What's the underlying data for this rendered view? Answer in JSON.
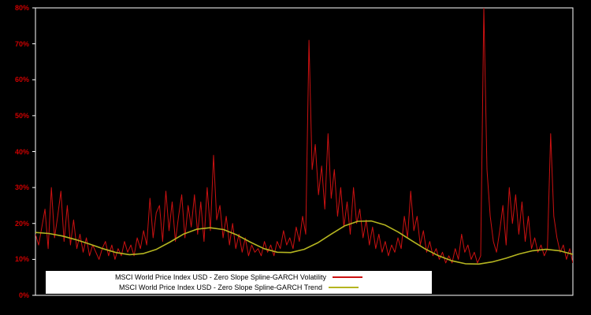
{
  "window": {
    "background": "#000000",
    "plot_border_color": "#ffffff"
  },
  "axis": {
    "tick_color": "#cc0000",
    "ticks": [
      "0%",
      "10%",
      "20%",
      "30%",
      "40%",
      "50%",
      "60%",
      "70%",
      "80%"
    ]
  },
  "legend": {
    "background": "#ffffff",
    "items": [
      {
        "label": "MSCI World Price Index USD - Zero Slope Spline-GARCH Volatility",
        "color": "#cc1111"
      },
      {
        "label": "MSCI World Price Index USD - Zero Slope Spline-GARCH Trend",
        "color": "#b5b520"
      }
    ]
  },
  "chart_data": {
    "type": "line",
    "title": "",
    "xlabel": "",
    "ylabel": "",
    "ylim": [
      0,
      80
    ],
    "y_ticks_percent": [
      0,
      10,
      20,
      30,
      40,
      50,
      60,
      70,
      80
    ],
    "grid": false,
    "legend_position": "bottom-center",
    "series": [
      {
        "name": "MSCI World Price Index USD - Zero Slope Spline-GARCH Volatility",
        "color": "#cc1111",
        "units": "%",
        "values": [
          17,
          14,
          19,
          24,
          13,
          30,
          16,
          22,
          29,
          15,
          25,
          14,
          21,
          13,
          17,
          12,
          16,
          11,
          14,
          12,
          10,
          13,
          15,
          11,
          14,
          10,
          13,
          11,
          15,
          12,
          14,
          11,
          16,
          13,
          18,
          14,
          27,
          16,
          23,
          25,
          15,
          29,
          18,
          26,
          15,
          22,
          28,
          16,
          25,
          19,
          28,
          17,
          26,
          15,
          30,
          18,
          39,
          21,
          25,
          16,
          22,
          14,
          20,
          13,
          17,
          12,
          16,
          11,
          14,
          12,
          13,
          11,
          15,
          12,
          14,
          11,
          15,
          13,
          18,
          14,
          16,
          13,
          19,
          15,
          22,
          17,
          71,
          35,
          42,
          28,
          36,
          24,
          45,
          27,
          35,
          22,
          30,
          19,
          26,
          17,
          30,
          20,
          24,
          16,
          21,
          14,
          19,
          13,
          17,
          12,
          15,
          11,
          14,
          12,
          16,
          13,
          22,
          16,
          29,
          18,
          22,
          14,
          18,
          12,
          15,
          11,
          13,
          10,
          12,
          9,
          11,
          9,
          13,
          10,
          17,
          12,
          14,
          10,
          12,
          9,
          11,
          80,
          35,
          22,
          15,
          12,
          18,
          25,
          14,
          30,
          20,
          28,
          17,
          26,
          15,
          22,
          13,
          16,
          12,
          14,
          11,
          13,
          45,
          22,
          16,
          12,
          14,
          10,
          13,
          9
        ]
      },
      {
        "name": "MSCI World Price Index USD - Zero Slope Spline-GARCH Trend",
        "color": "#b5b520",
        "units": "%",
        "values": [
          17.5,
          17.2,
          16.5,
          15.5,
          14.3,
          13.0,
          11.9,
          11.3,
          11.6,
          12.8,
          14.8,
          17.0,
          18.4,
          18.8,
          18.3,
          16.8,
          14.8,
          13.0,
          12.0,
          11.9,
          12.8,
          14.6,
          17.0,
          19.3,
          20.6,
          20.7,
          19.6,
          17.6,
          15.2,
          12.9,
          11.0,
          9.6,
          8.8,
          8.7,
          9.3,
          10.3,
          11.5,
          12.4,
          12.8,
          12.4,
          11.4
        ]
      }
    ]
  }
}
